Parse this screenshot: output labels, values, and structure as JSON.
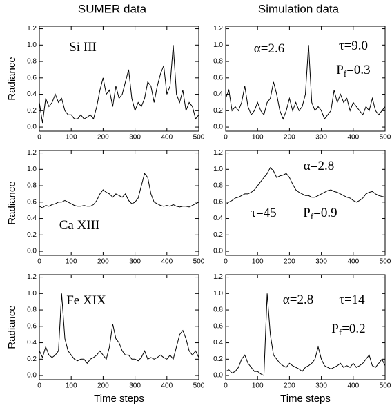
{
  "chart_data": [
    {
      "type": "line",
      "title": "SUMER data",
      "ylabel": "Radiance",
      "color": "#000000",
      "annotations": [
        {
          "text": "Si III"
        }
      ],
      "xlim": [
        0,
        500
      ],
      "xticks": [
        0,
        100,
        200,
        300,
        400,
        500
      ],
      "ylim": [
        -0.05,
        1.23
      ],
      "yticks": [
        {
          "value": 0,
          "label": "0.0"
        },
        0.2,
        0.4,
        0.6,
        0.8,
        {
          "value": 1,
          "label": "1.0"
        },
        1.2
      ],
      "x": [
        0,
        10,
        20,
        30,
        40,
        50,
        60,
        70,
        80,
        90,
        100,
        110,
        120,
        130,
        140,
        150,
        160,
        170,
        180,
        190,
        200,
        210,
        220,
        230,
        240,
        250,
        260,
        270,
        280,
        290,
        300,
        310,
        320,
        330,
        340,
        350,
        360,
        370,
        380,
        390,
        400,
        410,
        420,
        430,
        440,
        450,
        460,
        470,
        480,
        490,
        500
      ],
      "values": [
        0.3,
        0.05,
        0.35,
        0.25,
        0.3,
        0.4,
        0.3,
        0.35,
        0.2,
        0.15,
        0.15,
        0.1,
        0.1,
        0.15,
        0.1,
        0.12,
        0.15,
        0.1,
        0.25,
        0.45,
        0.6,
        0.4,
        0.45,
        0.25,
        0.5,
        0.35,
        0.4,
        0.55,
        0.7,
        0.35,
        0.2,
        0.3,
        0.25,
        0.35,
        0.55,
        0.5,
        0.3,
        0.5,
        0.65,
        0.75,
        0.4,
        0.5,
        1.0,
        0.4,
        0.3,
        0.45,
        0.2,
        0.3,
        0.25,
        0.1,
        0.15
      ]
    },
    {
      "type": "line",
      "title": "Simulation data",
      "color": "#000000",
      "annotations": [
        {
          "text": "α=2.6"
        },
        {
          "text": "τ=9.0"
        },
        {
          "text": "P",
          "subscript": "f",
          "suffix": "=0.3"
        }
      ],
      "xlim": [
        0,
        500
      ],
      "xticks": [
        0,
        100,
        200,
        300,
        400,
        500
      ],
      "ylim": [
        -0.05,
        1.23
      ],
      "yticks": [
        {
          "value": 0,
          "label": "0.0"
        },
        0.2,
        0.4,
        0.6,
        0.8,
        {
          "value": 1,
          "label": "1.0"
        },
        1.2
      ],
      "x": [
        0,
        10,
        20,
        30,
        40,
        50,
        60,
        70,
        80,
        90,
        100,
        110,
        120,
        130,
        140,
        150,
        160,
        170,
        180,
        190,
        200,
        210,
        220,
        230,
        240,
        250,
        260,
        270,
        280,
        290,
        300,
        310,
        320,
        330,
        340,
        350,
        360,
        370,
        380,
        390,
        400,
        410,
        420,
        430,
        440,
        450,
        460,
        470,
        480,
        490,
        500
      ],
      "values": [
        0.35,
        0.45,
        0.2,
        0.25,
        0.2,
        0.3,
        0.5,
        0.25,
        0.15,
        0.2,
        0.3,
        0.2,
        0.15,
        0.3,
        0.35,
        0.55,
        0.4,
        0.2,
        0.1,
        0.2,
        0.35,
        0.2,
        0.3,
        0.2,
        0.25,
        0.4,
        1.0,
        0.3,
        0.2,
        0.25,
        0.2,
        0.1,
        0.15,
        0.2,
        0.45,
        0.3,
        0.4,
        0.3,
        0.35,
        0.2,
        0.3,
        0.25,
        0.2,
        0.15,
        0.25,
        0.2,
        0.35,
        0.2,
        0.15,
        0.2,
        0.25
      ]
    },
    {
      "type": "line",
      "ylabel": "Radiance",
      "color": "#000000",
      "annotations": [
        {
          "text": "Ca XIII"
        }
      ],
      "xlim": [
        0,
        500
      ],
      "xticks": [
        0,
        100,
        200,
        300,
        400,
        500
      ],
      "ylim": [
        -0.05,
        1.23
      ],
      "yticks": [
        {
          "value": 0,
          "label": "0.0"
        },
        0.2,
        0.4,
        0.6,
        0.8,
        {
          "value": 1,
          "label": "1.0"
        },
        1.2
      ],
      "x": [
        0,
        10,
        20,
        30,
        40,
        50,
        60,
        70,
        80,
        90,
        100,
        110,
        120,
        130,
        140,
        150,
        160,
        170,
        180,
        190,
        200,
        210,
        220,
        230,
        240,
        250,
        260,
        270,
        280,
        290,
        300,
        310,
        320,
        330,
        340,
        350,
        360,
        370,
        380,
        390,
        400,
        410,
        420,
        430,
        440,
        450,
        460,
        470,
        480,
        490,
        500
      ],
      "values": [
        0.55,
        0.53,
        0.56,
        0.55,
        0.57,
        0.58,
        0.6,
        0.6,
        0.62,
        0.6,
        0.58,
        0.56,
        0.55,
        0.55,
        0.56,
        0.55,
        0.55,
        0.57,
        0.62,
        0.7,
        0.75,
        0.72,
        0.7,
        0.66,
        0.7,
        0.68,
        0.66,
        0.7,
        0.62,
        0.58,
        0.6,
        0.65,
        0.8,
        0.95,
        0.9,
        0.7,
        0.6,
        0.58,
        0.56,
        0.55,
        0.56,
        0.55,
        0.57,
        0.55,
        0.54,
        0.55,
        0.55,
        0.54,
        0.56,
        0.58,
        0.6
      ]
    },
    {
      "type": "line",
      "color": "#000000",
      "annotations": [
        {
          "text": "α=2.8"
        },
        {
          "text": "τ=45"
        },
        {
          "text": "P",
          "subscript": "f",
          "suffix": "=0.9"
        }
      ],
      "xlim": [
        0,
        500
      ],
      "xticks": [
        0,
        100,
        200,
        300,
        400,
        500
      ],
      "ylim": [
        -0.05,
        1.23
      ],
      "yticks": [
        {
          "value": 0,
          "label": "0.0"
        },
        0.2,
        0.4,
        0.6,
        0.8,
        {
          "value": 1,
          "label": "1.0"
        },
        1.2
      ],
      "x": [
        0,
        10,
        20,
        30,
        40,
        50,
        60,
        70,
        80,
        90,
        100,
        110,
        120,
        130,
        140,
        150,
        160,
        170,
        180,
        190,
        200,
        210,
        220,
        230,
        240,
        250,
        260,
        270,
        280,
        290,
        300,
        310,
        320,
        330,
        340,
        350,
        360,
        370,
        380,
        390,
        400,
        410,
        420,
        430,
        440,
        450,
        460,
        470,
        480,
        490,
        500
      ],
      "values": [
        0.57,
        0.6,
        0.62,
        0.65,
        0.66,
        0.68,
        0.7,
        0.7,
        0.72,
        0.75,
        0.8,
        0.85,
        0.9,
        0.95,
        1.02,
        0.98,
        0.9,
        0.92,
        0.93,
        0.95,
        0.9,
        0.82,
        0.75,
        0.72,
        0.7,
        0.68,
        0.68,
        0.66,
        0.66,
        0.68,
        0.7,
        0.72,
        0.74,
        0.75,
        0.73,
        0.72,
        0.7,
        0.68,
        0.66,
        0.65,
        0.62,
        0.6,
        0.62,
        0.65,
        0.7,
        0.72,
        0.73,
        0.7,
        0.68,
        0.67,
        0.66
      ]
    },
    {
      "type": "line",
      "ylabel": "Radiance",
      "xlabel": "Time steps",
      "color": "#000000",
      "annotations": [
        {
          "text": "Fe XIX"
        }
      ],
      "xlim": [
        0,
        500
      ],
      "xticks": [
        0,
        100,
        200,
        300,
        400,
        500
      ],
      "ylim": [
        -0.05,
        1.23
      ],
      "yticks": [
        {
          "value": 0,
          "label": "0.0"
        },
        0.2,
        0.4,
        0.6,
        0.8,
        {
          "value": 1,
          "label": "1.0"
        },
        1.2
      ],
      "x": [
        0,
        10,
        20,
        30,
        40,
        50,
        60,
        70,
        80,
        90,
        100,
        110,
        120,
        130,
        140,
        150,
        160,
        170,
        180,
        190,
        200,
        210,
        220,
        230,
        240,
        250,
        260,
        270,
        280,
        290,
        300,
        310,
        320,
        330,
        340,
        350,
        360,
        370,
        380,
        390,
        400,
        410,
        420,
        430,
        440,
        450,
        460,
        470,
        480,
        490,
        500
      ],
      "values": [
        0.3,
        0.22,
        0.35,
        0.25,
        0.22,
        0.25,
        0.3,
        1.0,
        0.45,
        0.3,
        0.25,
        0.2,
        0.18,
        0.2,
        0.2,
        0.15,
        0.2,
        0.22,
        0.25,
        0.3,
        0.25,
        0.2,
        0.35,
        0.63,
        0.45,
        0.4,
        0.3,
        0.25,
        0.25,
        0.2,
        0.2,
        0.18,
        0.22,
        0.3,
        0.2,
        0.22,
        0.2,
        0.22,
        0.25,
        0.22,
        0.2,
        0.25,
        0.2,
        0.35,
        0.5,
        0.55,
        0.45,
        0.3,
        0.25,
        0.3,
        0.22
      ]
    },
    {
      "type": "line",
      "xlabel": "Time steps",
      "color": "#000000",
      "annotations": [
        {
          "text": "α=2.8"
        },
        {
          "text": "τ=14"
        },
        {
          "text": "P",
          "subscript": "f",
          "suffix": "=0.2"
        }
      ],
      "xlim": [
        0,
        500
      ],
      "xticks": [
        0,
        100,
        200,
        300,
        400,
        500
      ],
      "ylim": [
        -0.05,
        1.23
      ],
      "yticks": [
        {
          "value": 0,
          "label": "0.0"
        },
        0.2,
        0.4,
        0.6,
        0.8,
        {
          "value": 1,
          "label": "1.0"
        },
        1.2
      ],
      "x": [
        0,
        10,
        20,
        30,
        40,
        50,
        60,
        70,
        80,
        90,
        100,
        110,
        120,
        130,
        140,
        150,
        160,
        170,
        180,
        190,
        200,
        210,
        220,
        230,
        240,
        250,
        260,
        270,
        280,
        290,
        300,
        310,
        320,
        330,
        340,
        350,
        360,
        370,
        380,
        390,
        400,
        410,
        420,
        430,
        440,
        450,
        460,
        470,
        480,
        490,
        500
      ],
      "values": [
        0.05,
        0.07,
        0.03,
        0.05,
        0.1,
        0.2,
        0.25,
        0.15,
        0.1,
        0.05,
        0.05,
        0.02,
        0.0,
        1.0,
        0.5,
        0.25,
        0.2,
        0.15,
        0.12,
        0.1,
        0.15,
        0.12,
        0.1,
        0.08,
        0.05,
        0.1,
        0.12,
        0.15,
        0.2,
        0.35,
        0.2,
        0.12,
        0.1,
        0.08,
        0.1,
        0.12,
        0.15,
        0.1,
        0.12,
        0.1,
        0.15,
        0.1,
        0.12,
        0.15,
        0.2,
        0.25,
        0.12,
        0.1,
        0.15,
        0.2,
        0.12
      ]
    }
  ]
}
